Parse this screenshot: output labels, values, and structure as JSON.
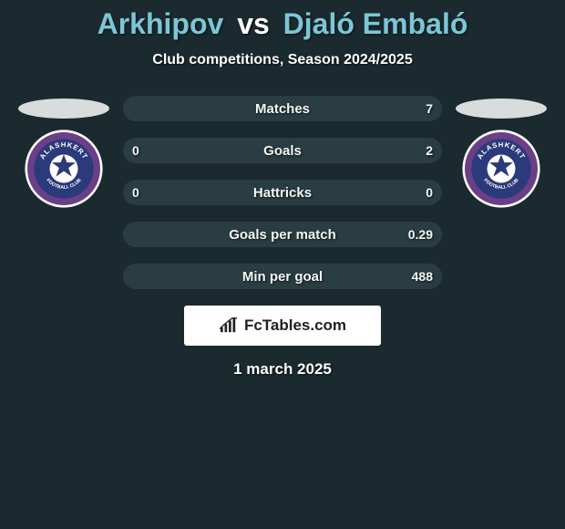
{
  "colors": {
    "background": "#1a2a2e",
    "accent": "#7cc6d6",
    "text": "#ffffff",
    "bar_track": "#2a3d42",
    "badge_purple": "#6b3f87",
    "badge_blue": "#2b3a7a",
    "badge_white": "#ffffff",
    "ellipse": "#d8dcdc",
    "brand_box": "#ffffff",
    "brand_text": "#212121"
  },
  "header": {
    "player1": "Arkhipov",
    "vs": "vs",
    "player2": "Djaló Embaló",
    "subtitle": "Club competitions, Season 2024/2025"
  },
  "clubs": {
    "left_name": "ALASHKERT",
    "right_name": "ALASHKERT",
    "left_sub": "FOOTBALL CLUB",
    "right_sub": "FOOTBALL CLUB"
  },
  "stats": [
    {
      "label": "Matches",
      "left_value": "",
      "right_value": "7",
      "fill_left_pct": 0,
      "fill_right_pct": 100,
      "fill_left_color": "#7cc6d6",
      "fill_right_color": "#2a3d42"
    },
    {
      "label": "Goals",
      "left_value": "0",
      "right_value": "2",
      "fill_left_pct": 0,
      "fill_right_pct": 100,
      "fill_left_color": "#7cc6d6",
      "fill_right_color": "#2a3d42"
    },
    {
      "label": "Hattricks",
      "left_value": "0",
      "right_value": "0",
      "fill_left_pct": 0,
      "fill_right_pct": 0,
      "fill_left_color": "#7cc6d6",
      "fill_right_color": "#2a3d42"
    },
    {
      "label": "Goals per match",
      "left_value": "",
      "right_value": "0.29",
      "fill_left_pct": 0,
      "fill_right_pct": 100,
      "fill_left_color": "#7cc6d6",
      "fill_right_color": "#2a3d42"
    },
    {
      "label": "Min per goal",
      "left_value": "",
      "right_value": "488",
      "fill_left_pct": 0,
      "fill_right_pct": 100,
      "fill_left_color": "#7cc6d6",
      "fill_right_color": "#2a3d42"
    }
  ],
  "branding": {
    "text": "FcTables.com"
  },
  "footer": {
    "date": "1 march 2025"
  }
}
